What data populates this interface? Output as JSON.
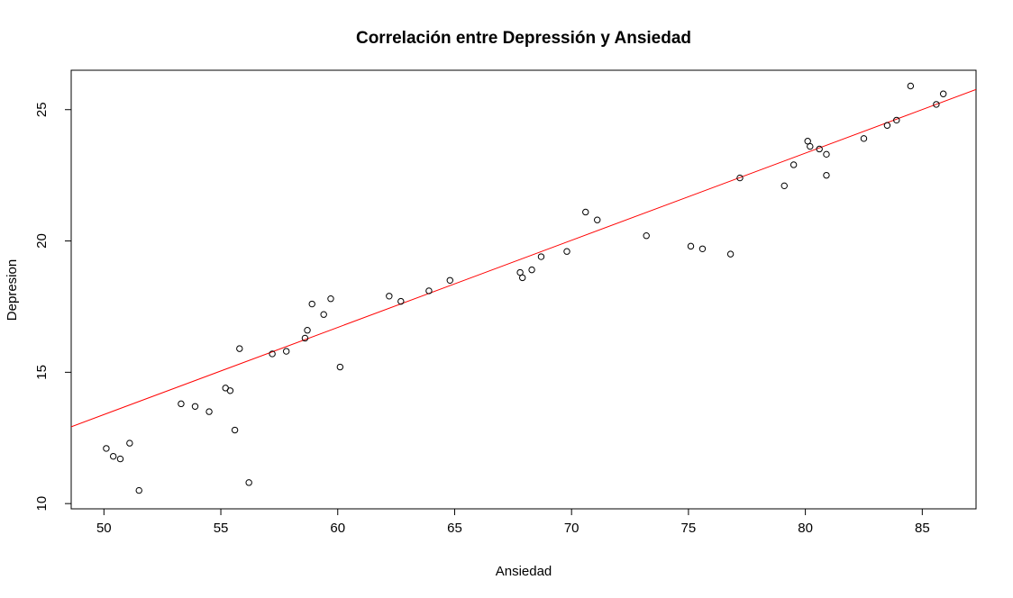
{
  "chart_data": {
    "type": "scatter",
    "title": "Correlación entre  Depressión y Ansiedad",
    "xlabel": "Ansiedad",
    "ylabel": "Depresion",
    "xlim": [
      48.6,
      87.3
    ],
    "ylim": [
      9.8,
      26.5
    ],
    "x_ticks": [
      50,
      55,
      60,
      65,
      70,
      75,
      80,
      85
    ],
    "y_ticks": [
      10,
      15,
      20,
      25
    ],
    "grid": false,
    "colors": {
      "points": "#000000",
      "fit_line": "#ff0000"
    },
    "series": [
      {
        "points": [
          [
            50.1,
            12.1
          ],
          [
            50.4,
            11.8
          ],
          [
            50.7,
            11.7
          ],
          [
            51.1,
            12.3
          ],
          [
            51.5,
            10.5
          ],
          [
            53.3,
            13.8
          ],
          [
            53.9,
            13.7
          ],
          [
            54.5,
            13.5
          ],
          [
            55.2,
            14.4
          ],
          [
            55.4,
            14.3
          ],
          [
            55.6,
            12.8
          ],
          [
            55.8,
            15.9
          ],
          [
            56.2,
            10.8
          ],
          [
            57.2,
            15.7
          ],
          [
            57.8,
            15.8
          ],
          [
            58.6,
            16.3
          ],
          [
            58.7,
            16.6
          ],
          [
            58.9,
            17.6
          ],
          [
            59.4,
            17.2
          ],
          [
            59.7,
            17.8
          ],
          [
            60.1,
            15.2
          ],
          [
            62.2,
            17.9
          ],
          [
            62.7,
            17.7
          ],
          [
            63.9,
            18.1
          ],
          [
            64.8,
            18.5
          ],
          [
            67.8,
            18.8
          ],
          [
            67.9,
            18.6
          ],
          [
            68.3,
            18.9
          ],
          [
            68.7,
            19.4
          ],
          [
            69.8,
            19.6
          ],
          [
            70.6,
            21.1
          ],
          [
            71.1,
            20.8
          ],
          [
            73.2,
            20.2
          ],
          [
            75.1,
            19.8
          ],
          [
            75.6,
            19.7
          ],
          [
            76.8,
            19.5
          ],
          [
            77.2,
            22.4
          ],
          [
            79.1,
            22.1
          ],
          [
            79.5,
            22.9
          ],
          [
            80.1,
            23.8
          ],
          [
            80.2,
            23.6
          ],
          [
            80.6,
            23.5
          ],
          [
            80.9,
            23.3
          ],
          [
            80.9,
            22.5
          ],
          [
            82.5,
            23.9
          ],
          [
            83.5,
            24.4
          ],
          [
            83.9,
            24.6
          ],
          [
            84.5,
            25.9
          ],
          [
            85.6,
            25.2
          ],
          [
            85.9,
            25.6
          ]
        ]
      }
    ],
    "fit_line": {
      "intercept": -3.2,
      "slope": 0.3318
    }
  }
}
